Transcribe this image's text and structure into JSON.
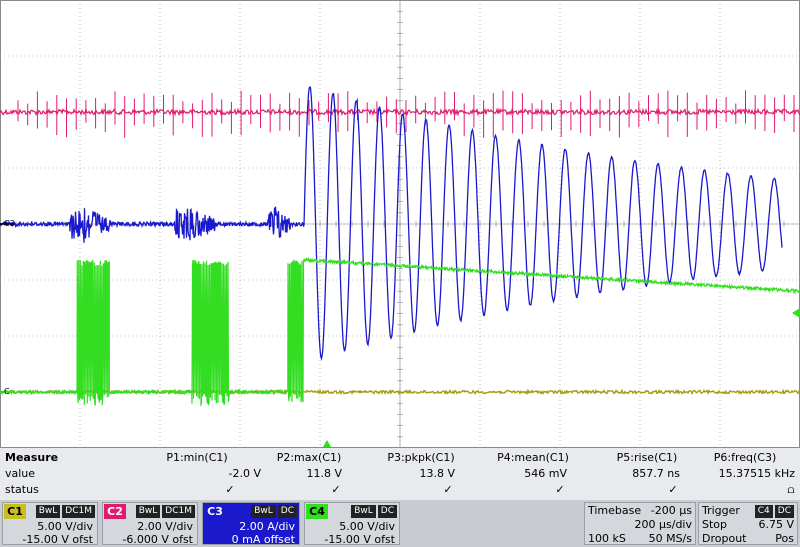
{
  "colors": {
    "c1": "#33dd22",
    "c2": "#e01a6e",
    "c3": "#1a1acc",
    "c4": "#a89a10",
    "grid": "#888888",
    "c1_box": "#c8c020",
    "c2_box": "#e01a6e",
    "c3_box": "#1a1acc",
    "c4_box": "#33dd22"
  },
  "chart_data": {
    "type": "line",
    "grid": true,
    "x_divisions": 10,
    "y_divisions": 8,
    "timebase_per_div": "200 µs/div",
    "trace_markers": [
      {
        "label": "C3",
        "channel": "C3"
      },
      {
        "label": "C",
        "channel": "C1"
      }
    ],
    "series": [
      {
        "name": "C1",
        "unit": "V",
        "volts_per_div": 5.0,
        "offset_V": -15.0,
        "description_segments": [
          {
            "t_start_div": 0.0,
            "t_end_div": 1.45,
            "level_V": 0.0
          },
          {
            "t_start_div": 1.45,
            "t_end_div": 2.05,
            "burst": true,
            "low_V": -2.0,
            "high_V": 11.8
          },
          {
            "t_start_div": 2.05,
            "t_end_div": 3.6,
            "level_V": 0.0
          },
          {
            "t_start_div": 3.6,
            "t_end_div": 4.3,
            "burst": true,
            "low_V": -2.0,
            "high_V": 11.8
          },
          {
            "t_start_div": 4.3,
            "t_end_div": 5.4,
            "level_V": 0.0
          },
          {
            "t_start_div": 5.4,
            "t_end_div": 5.7,
            "burst": true,
            "low_V": -2.0,
            "high_V": 11.8
          },
          {
            "t_start_div": 5.7,
            "t_end_div": 15.5,
            "ramp_from_V": 11.8,
            "ramp_to_V": 9.0
          }
        ]
      },
      {
        "name": "C2",
        "unit": "V",
        "volts_per_div": 2.0,
        "offset_V": -6.0,
        "level_V": 10.0,
        "noise_spikes": true
      },
      {
        "name": "C3",
        "unit": "A",
        "amps_per_div": 2.0,
        "offset_A": 0.0,
        "level_A": 0.0,
        "ringing": {
          "start_div": 5.7,
          "end_div": 15.5,
          "initial_amplitude_A": 5.0,
          "final_amplitude_A": 1.6,
          "frequency_kHz": 15.37515
        }
      },
      {
        "name": "C4",
        "unit": "V",
        "volts_per_div": 5.0,
        "offset_V": -15.0,
        "level_V": 0.0
      }
    ]
  },
  "measure": {
    "header": "Measure",
    "row_value_label": "value",
    "row_status_label": "status",
    "params": [
      {
        "name": "P1:min(C1)",
        "value": "-2.0 V",
        "status": "✓"
      },
      {
        "name": "P2:max(C1)",
        "value": "11.8 V",
        "status": "✓"
      },
      {
        "name": "P3:pkpk(C1)",
        "value": "13.8 V",
        "status": "✓"
      },
      {
        "name": "P4:mean(C1)",
        "value": "546 mV",
        "status": "✓"
      },
      {
        "name": "P5:rise(C1)",
        "value": "857.7 ns",
        "status": "✓"
      },
      {
        "name": "P6:freq(C3)",
        "value": "15.37515 kHz",
        "status": "⩍"
      }
    ]
  },
  "channels": [
    {
      "id": "C1",
      "badges": [
        "BwL",
        "DC1M"
      ],
      "scale": "5.00 V/div",
      "offset": "-15.00 V ofst"
    },
    {
      "id": "C2",
      "badges": [
        "BwL",
        "DC1M"
      ],
      "scale": "2.00 V/div",
      "offset": "-6.000 V ofst"
    },
    {
      "id": "C3",
      "badges": [
        "BwL",
        "DC"
      ],
      "scale": "2.00 A/div",
      "offset": "0 mA offset"
    },
    {
      "id": "C4",
      "badges": [
        "BwL",
        "DC"
      ],
      "scale": "5.00 V/div",
      "offset": "-15.00 V ofst"
    }
  ],
  "timebase": {
    "label": "Timebase",
    "delay": "-200 µs",
    "per_div": "200 µs/div",
    "samples": "100 kS",
    "rate": "50 MS/s"
  },
  "trigger": {
    "label": "Trigger",
    "badges": [
      "C4",
      "DC"
    ],
    "mode": "Stop",
    "level": "6.75 V",
    "type": "Dropout",
    "slope": "Pos"
  }
}
